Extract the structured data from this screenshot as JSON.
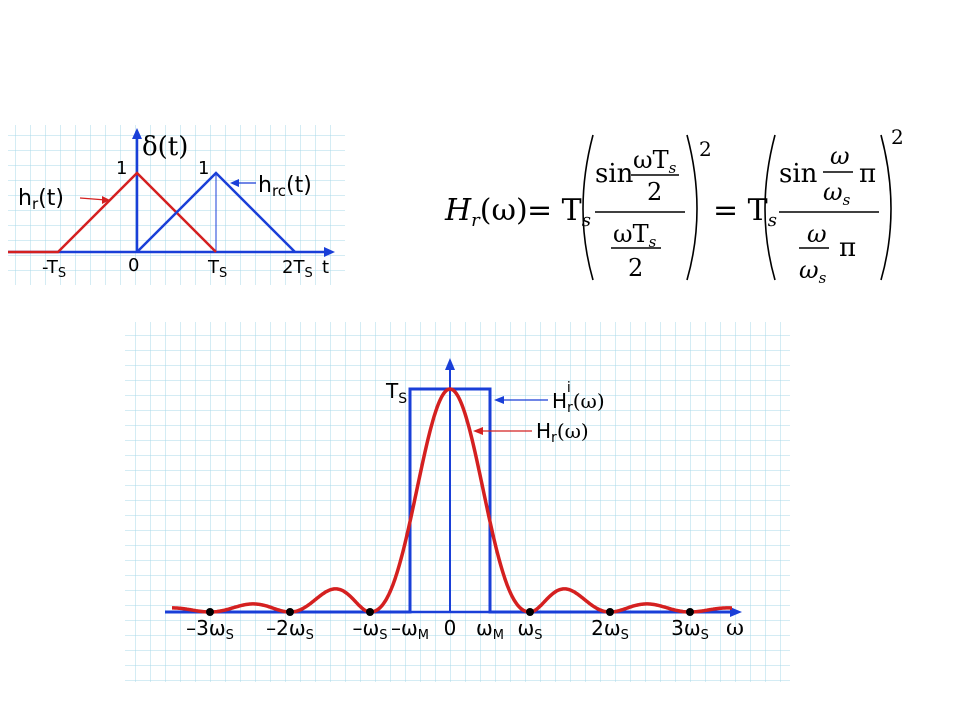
{
  "time_panel": {
    "delta_label": "δ(t)",
    "hr_label": "h",
    "hr_sub": "r",
    "hr_suffix": "(t)",
    "hrc_label": "h",
    "hrc_sub": "rc",
    "hrc_suffix": "(t)",
    "peak_one_left": "1",
    "peak_one_right": "1",
    "tick_neg_ts": "-T",
    "tick_zero": "0",
    "tick_ts": "T",
    "tick_2ts": "2T",
    "tick_sub_s": "S",
    "axis_t": "t",
    "colors": {
      "hr": "#d42020",
      "hrc": "#1a3fd8",
      "axis": "#1a3fd8"
    }
  },
  "formula": {
    "lhs_H": "H",
    "lhs_sub": "r",
    "lhs_arg": "(ω)",
    "eq1": "= T",
    "Ts_sub": "s",
    "sin": "sin",
    "num1": "ωT",
    "two": "2",
    "den1": "ωT",
    "exponent": "2",
    "eq2": "= T",
    "omega": "ω",
    "omega_s": "ω",
    "pi": "π"
  },
  "freq_panel": {
    "ts_label": "T",
    "ts_sub": "S",
    "hri_label": "H",
    "hri_sub": "r",
    "hri_sup": "i",
    "hri_arg": "(ω)",
    "hr_label": "H",
    "hr_sub": "r",
    "hr_arg": "(ω)",
    "ticks": [
      {
        "main": "–3ω",
        "sub": "S"
      },
      {
        "main": "–2ω",
        "sub": "S"
      },
      {
        "main": "–ω",
        "sub": "S"
      },
      {
        "main": "–ω",
        "sub": "M"
      },
      {
        "main": "0",
        "sub": ""
      },
      {
        "main": "ω",
        "sub": "M"
      },
      {
        "main": "ω",
        "sub": "S"
      },
      {
        "main": "2ω",
        "sub": "S"
      },
      {
        "main": "3ω",
        "sub": "S"
      }
    ],
    "axis_omega": "ω",
    "colors": {
      "sinc": "#d42020",
      "rect": "#1a3fd8",
      "axis": "#1a3fd8",
      "dots": "#000000"
    }
  }
}
